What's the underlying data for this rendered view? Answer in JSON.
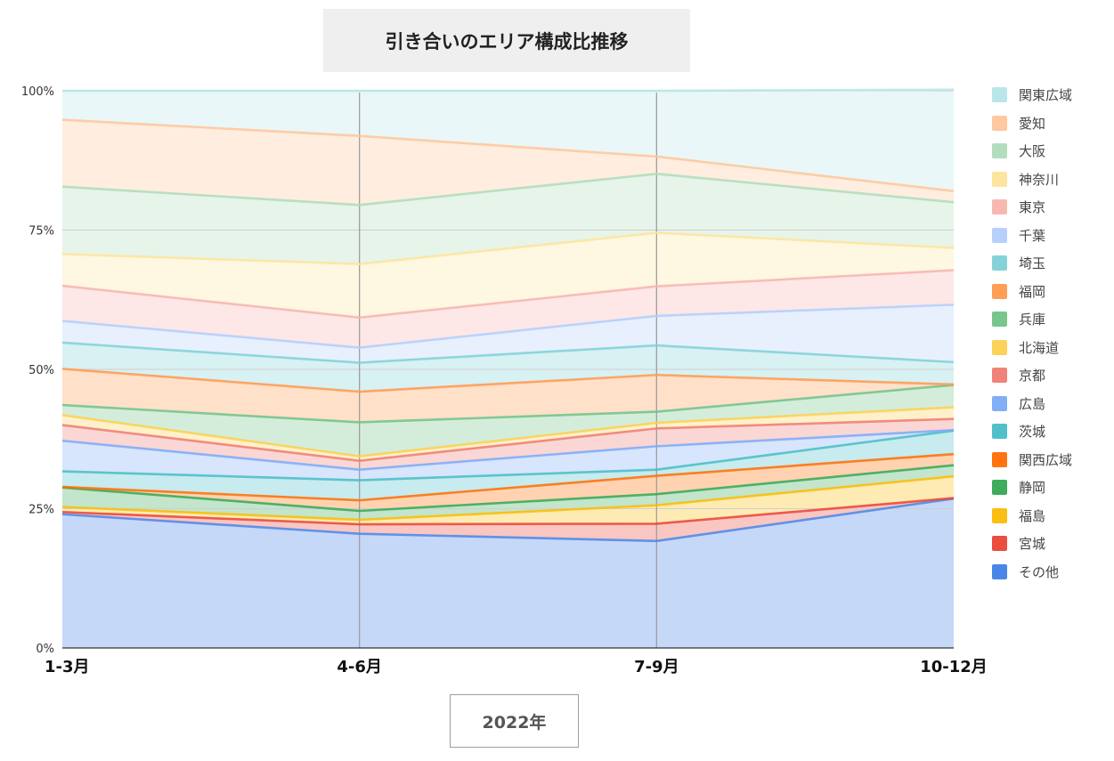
{
  "chart_data": {
    "type": "area",
    "stacked": true,
    "normalized": true,
    "title": "引き合いのエリア構成比推移",
    "xlabel": "2022年",
    "categories": [
      "1-3月",
      "4-6月",
      "7-9月",
      "10-12月"
    ],
    "yticks": [
      "100%",
      "75%",
      "50%",
      "25%",
      "0%"
    ],
    "ylim": [
      0,
      100
    ],
    "grid": true,
    "legend_position": "right",
    "series": [
      {
        "name": "その他",
        "color": "#4a86e8",
        "values": [
          24.0,
          20.5,
          19.2,
          26.8
        ]
      },
      {
        "name": "宮城",
        "color": "#ea4335",
        "values": [
          0.4,
          1.7,
          3.1,
          0.1
        ]
      },
      {
        "name": "福島",
        "color": "#fbbc04",
        "values": [
          0.9,
          0.8,
          3.3,
          3.9
        ]
      },
      {
        "name": "静岡",
        "color": "#34a853",
        "values": [
          3.5,
          1.6,
          2.0,
          2.0
        ]
      },
      {
        "name": "関西広域",
        "color": "#ff6d01",
        "values": [
          0.1,
          1.9,
          3.3,
          2.0
        ]
      },
      {
        "name": "茨城",
        "color": "#46bdc6",
        "values": [
          2.8,
          3.6,
          1.1,
          4.2
        ]
      },
      {
        "name": "広島",
        "color": "#7baaf7",
        "values": [
          5.5,
          1.9,
          4.2,
          0.1
        ]
      },
      {
        "name": "京都",
        "color": "#f07b72",
        "values": [
          2.8,
          1.6,
          3.2,
          2.0
        ]
      },
      {
        "name": "北海道",
        "color": "#fcd04f",
        "values": [
          1.8,
          0.8,
          1.0,
          2.1
        ]
      },
      {
        "name": "兵庫",
        "color": "#71c287",
        "values": [
          1.8,
          6.1,
          2.0,
          4.0
        ]
      },
      {
        "name": "福岡",
        "color": "#ff994d",
        "values": [
          6.5,
          5.5,
          6.6,
          0.1
        ]
      },
      {
        "name": "埼玉",
        "color": "#7ed1d7",
        "values": [
          4.7,
          5.2,
          5.3,
          4.0
        ]
      },
      {
        "name": "千葉",
        "color": "#b3cefb",
        "values": [
          3.9,
          2.7,
          5.3,
          10.3
        ]
      },
      {
        "name": "東京",
        "color": "#f7b4ae",
        "values": [
          6.3,
          5.4,
          5.3,
          6.2
        ]
      },
      {
        "name": "神奈川",
        "color": "#fde49b",
        "values": [
          5.7,
          9.6,
          9.6,
          4.0
        ]
      },
      {
        "name": "大阪",
        "color": "#aedcba",
        "values": [
          12.1,
          10.6,
          10.6,
          8.2
        ]
      },
      {
        "name": "愛知",
        "color": "#ffc599",
        "values": [
          12.0,
          12.4,
          3.1,
          2.0
        ]
      },
      {
        "name": "関東広域",
        "color": "#b5e5e8",
        "values": [
          5.2,
          8.1,
          11.8,
          18.2
        ]
      }
    ]
  }
}
